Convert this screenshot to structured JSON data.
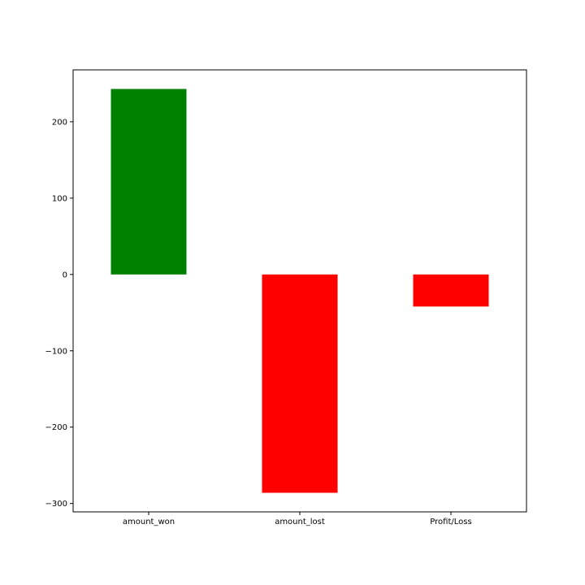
{
  "chart_data": {
    "type": "bar",
    "categories": [
      "amount_won",
      "amount_lost",
      "Profit/Loss"
    ],
    "values": [
      243,
      -286,
      -42
    ],
    "colors": [
      "#008000",
      "#ff0000",
      "#ff0000"
    ],
    "ylim": [
      -311,
      268
    ],
    "yticks": [
      200,
      100,
      0,
      -100,
      -200,
      -300
    ],
    "ytick_labels": [
      "200",
      "100",
      "0",
      "−100",
      "−200",
      "−300"
    ],
    "title": "",
    "xlabel": "",
    "ylabel": "",
    "grid": false,
    "legend": false
  }
}
